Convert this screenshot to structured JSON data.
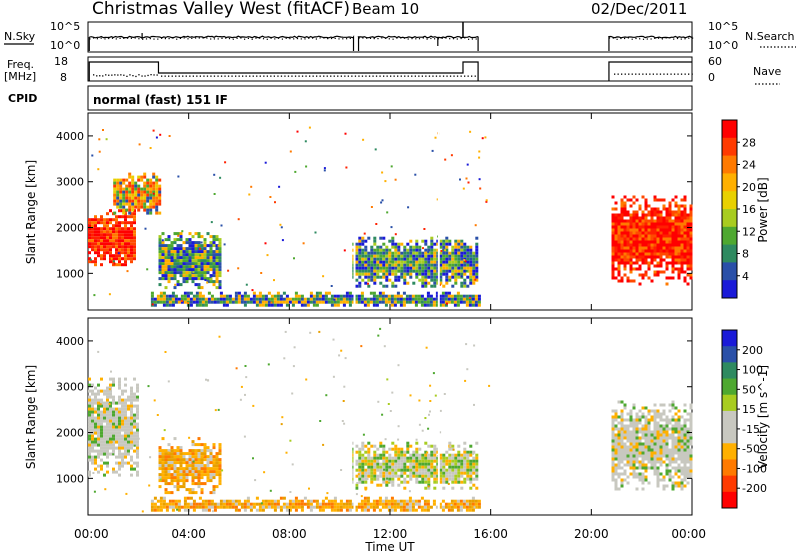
{
  "header": {
    "title": "Christmas Valley West (fitACF)",
    "beam": "Beam 10",
    "date": "02/Dec/2011"
  },
  "left_labels": {
    "nsky": "N.Sky",
    "freq": "Freq.",
    "freq_unit": "[MHz]",
    "cpid": "CPID"
  },
  "right_labels": {
    "nsearch": "N.Search",
    "nave": "Nave"
  },
  "noise_panel": {
    "left_ticks": [
      "10^5",
      "10^0"
    ],
    "right_ticks": [
      "10^5",
      "10^0"
    ]
  },
  "freq_panel": {
    "left_ticks": [
      "18",
      "8"
    ],
    "right_ticks": [
      "60",
      "0"
    ]
  },
  "cpid_text": "normal (fast) 151 IF",
  "power_colorbar": {
    "label": "Power [dB]",
    "ticks": [
      "28",
      "24",
      "20",
      "16",
      "12",
      "8",
      "4"
    ],
    "colors": [
      "#ff0000",
      "#ff3a00",
      "#ff7a00",
      "#ffb000",
      "#e8d000",
      "#a8cc20",
      "#4ea830",
      "#2e8a60",
      "#2a50a8",
      "#1a1ad8"
    ]
  },
  "velocity_colorbar": {
    "label": "Velocity [m s^-1]",
    "ticks": [
      "200",
      "100",
      "50",
      "15",
      "-15",
      "-50",
      "-100",
      "-200"
    ],
    "colors": [
      "#1a1ad8",
      "#2a50a8",
      "#2e8a60",
      "#4ea830",
      "#a8cc20",
      "#c8c8c0",
      "#c8c8c0",
      "#ffb000",
      "#ff7a00",
      "#ff3a00",
      "#ff0000"
    ]
  },
  "chart_data": [
    {
      "type": "heatmap",
      "name": "power",
      "ylabel": "Slant Range [km]",
      "yticks": [
        "1000",
        "2000",
        "3000",
        "4000"
      ],
      "ylim": [
        200,
        4500
      ],
      "xlim": [
        0,
        24
      ],
      "regions": [
        {
          "t0": 0.0,
          "t1": 1.8,
          "r0": 1200,
          "r1": 2400,
          "level": "high"
        },
        {
          "t0": 1.0,
          "t1": 2.8,
          "r0": 2300,
          "r1": 3200,
          "level": "mixed"
        },
        {
          "t0": 2.8,
          "t1": 5.2,
          "r0": 700,
          "r1": 1900,
          "level": "mid"
        },
        {
          "t0": 2.5,
          "t1": 15.5,
          "r0": 300,
          "r1": 600,
          "level": "low"
        },
        {
          "t0": 10.5,
          "t1": 15.5,
          "r0": 700,
          "r1": 1800,
          "level": "mid"
        },
        {
          "t0": 20.8,
          "t1": 24.0,
          "r0": 800,
          "r1": 2700,
          "level": "high"
        }
      ]
    },
    {
      "type": "heatmap",
      "name": "velocity",
      "ylabel": "Slant Range [km]",
      "yticks": [
        "1000",
        "2000",
        "3000",
        "4000"
      ],
      "ylim": [
        200,
        4500
      ],
      "xlim": [
        0,
        24
      ],
      "xticks": [
        "00:00",
        "04:00",
        "08:00",
        "12:00",
        "16:00",
        "20:00",
        "00:00"
      ],
      "xlabel": "Time UT",
      "regions": [
        {
          "t0": 0.0,
          "t1": 2.0,
          "r0": 1100,
          "r1": 3200,
          "level": "neutral"
        },
        {
          "t0": 2.8,
          "t1": 5.2,
          "r0": 700,
          "r1": 1900,
          "level": "negative"
        },
        {
          "t0": 2.5,
          "t1": 15.5,
          "r0": 300,
          "r1": 600,
          "level": "negative"
        },
        {
          "t0": 10.5,
          "t1": 15.5,
          "r0": 800,
          "r1": 1800,
          "level": "mixed"
        },
        {
          "t0": 20.8,
          "t1": 24.0,
          "r0": 800,
          "r1": 2700,
          "level": "neutral"
        }
      ]
    }
  ]
}
